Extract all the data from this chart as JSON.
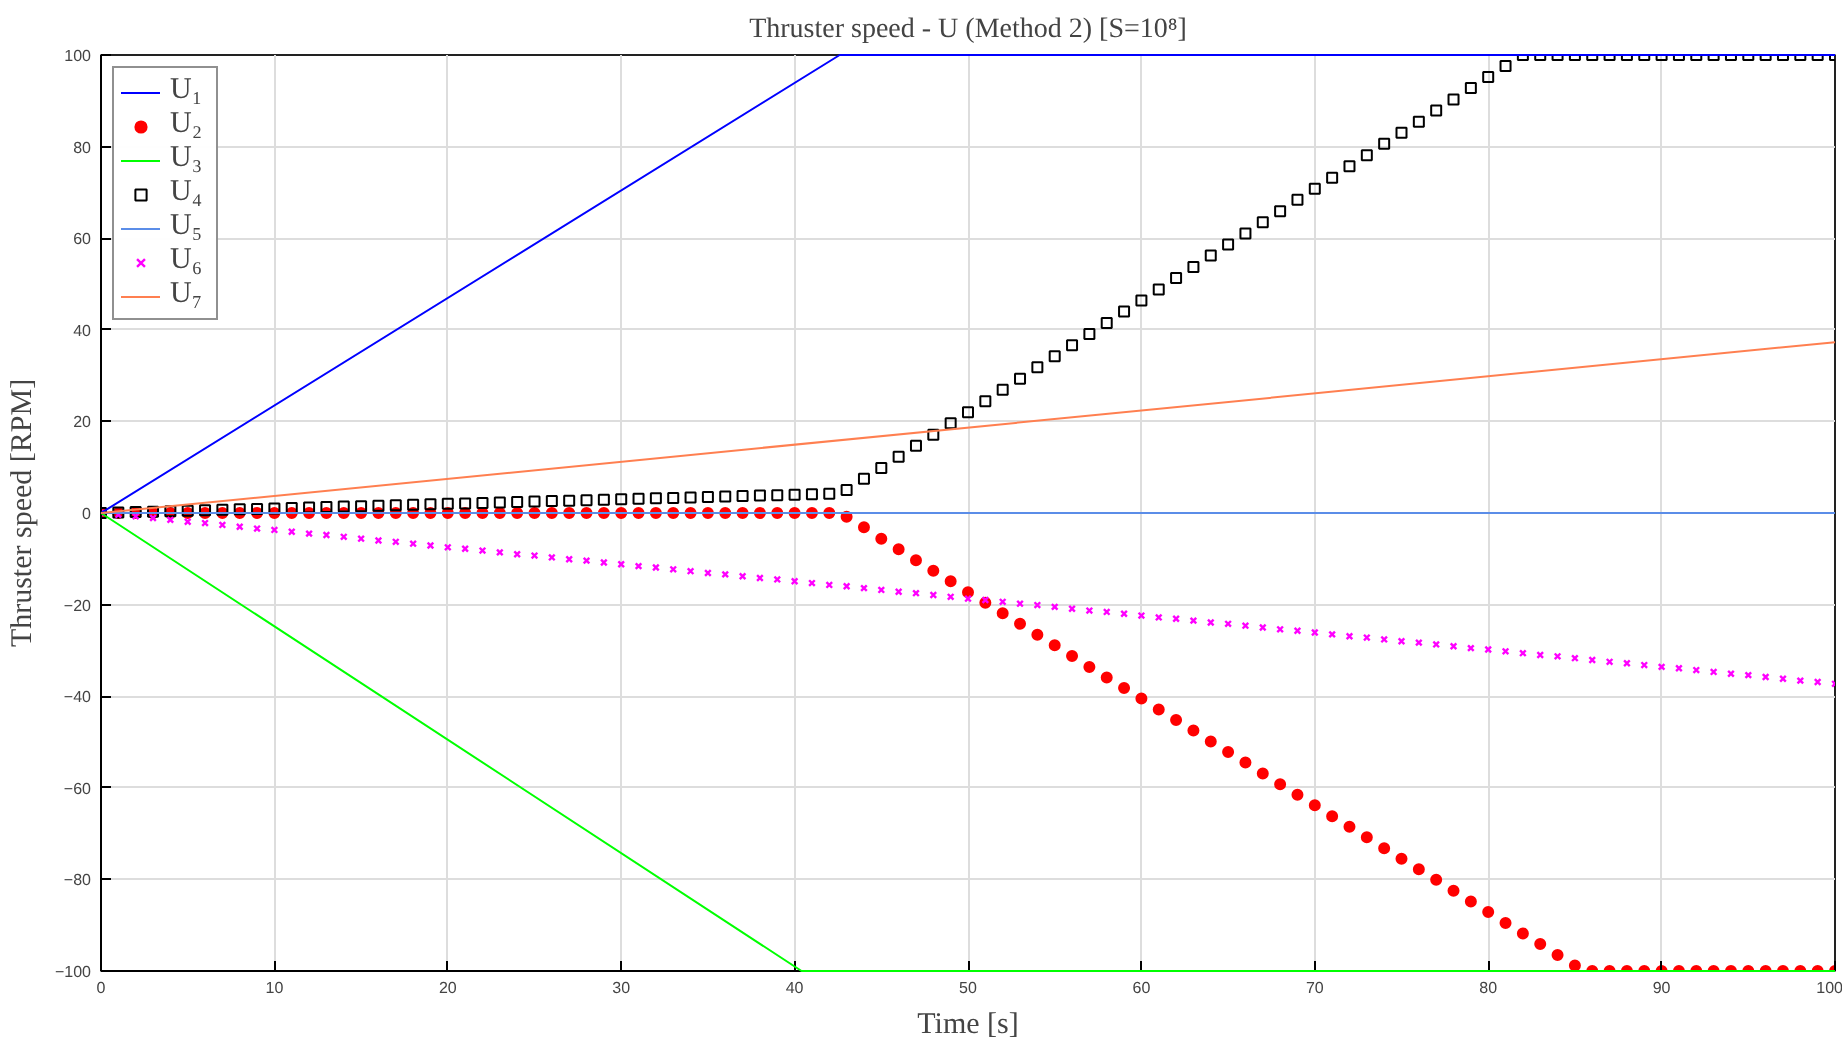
{
  "chart_data": {
    "type": "line",
    "title": "Thruster speed - U (Method 2) [S=10⁸]",
    "xlabel": "Time [s]",
    "ylabel": "Thruster speed [RPM]",
    "xlim": [
      0,
      100
    ],
    "ylim": [
      -100,
      100
    ],
    "xticks": [
      0,
      10,
      20,
      30,
      40,
      50,
      60,
      70,
      80,
      90,
      100
    ],
    "yticks": [
      -100,
      -80,
      -60,
      -40,
      -20,
      0,
      20,
      40,
      60,
      80,
      100
    ],
    "grid": true,
    "legend": "top left",
    "series": [
      {
        "name": "U₁",
        "color": "#0000ff",
        "marker": "none",
        "x": [
          0,
          42.6,
          100
        ],
        "values": [
          0,
          100,
          100
        ]
      },
      {
        "name": "U₂",
        "type": "scatter",
        "color": "#ff0000",
        "marker": "circle",
        "x": [
          0,
          1,
          2,
          3,
          4,
          5,
          6,
          7,
          8,
          9,
          10,
          11,
          12,
          13,
          14,
          15,
          16,
          17,
          18,
          19,
          20,
          21,
          22,
          23,
          24,
          25,
          26,
          27,
          28,
          29,
          30,
          31,
          32,
          33,
          34,
          35,
          36,
          37,
          38,
          39,
          40,
          41,
          42,
          43,
          44,
          45,
          46,
          47,
          48,
          49,
          50,
          51,
          52,
          53,
          54,
          55,
          56,
          57,
          58,
          59,
          60,
          61,
          62,
          63,
          64,
          65,
          66,
          67,
          68,
          69,
          70,
          71,
          72,
          73,
          74,
          75,
          76,
          77,
          78,
          79,
          80,
          81,
          82,
          83,
          84,
          85,
          86,
          87,
          88,
          89,
          90,
          91,
          92,
          93,
          94,
          95,
          96,
          97,
          98,
          99,
          100
        ],
        "values": [
          0,
          0,
          0,
          0,
          0,
          0,
          0,
          0,
          0,
          0,
          0,
          0,
          0,
          0,
          0,
          0,
          0,
          0,
          0,
          0,
          0,
          0,
          0,
          0,
          0,
          0,
          0,
          0,
          0,
          0,
          0,
          0,
          0,
          0,
          0,
          0,
          0,
          0,
          0,
          0,
          0,
          0,
          0,
          -0.8,
          -3.1,
          -5.6,
          -7.9,
          -10.3,
          -12.6,
          -14.9,
          -17.3,
          -19.6,
          -21.9,
          -24.2,
          -26.6,
          -28.9,
          -31.2,
          -33.6,
          -35.9,
          -38.2,
          -40.5,
          -42.9,
          -45.2,
          -47.5,
          -49.9,
          -52.2,
          -54.5,
          -56.9,
          -59.2,
          -61.5,
          -63.8,
          -66.2,
          -68.5,
          -70.8,
          -73.2,
          -75.5,
          -77.8,
          -80.1,
          -82.5,
          -84.8,
          -87.1,
          -89.5,
          -91.8,
          -94.1,
          -96.5,
          -98.8,
          -100,
          -100,
          -100,
          -100,
          -100,
          -100,
          -100,
          -100,
          -100,
          -100,
          -100,
          -100,
          -100,
          -100,
          -100
        ]
      },
      {
        "name": "U₃",
        "color": "#00ff00",
        "marker": "none",
        "x": [
          0,
          40.4,
          100
        ],
        "values": [
          0,
          -100,
          -100
        ]
      },
      {
        "name": "U₄",
        "type": "scatter",
        "color": "#000000",
        "marker": "square",
        "x": [
          0,
          1,
          2,
          3,
          4,
          5,
          6,
          7,
          8,
          9,
          10,
          11,
          12,
          13,
          14,
          15,
          16,
          17,
          18,
          19,
          20,
          21,
          22,
          23,
          24,
          25,
          26,
          27,
          28,
          29,
          30,
          31,
          32,
          33,
          34,
          35,
          36,
          37,
          38,
          39,
          40,
          41,
          42,
          43,
          44,
          45,
          46,
          47,
          48,
          49,
          50,
          51,
          52,
          53,
          54,
          55,
          56,
          57,
          58,
          59,
          60,
          61,
          62,
          63,
          64,
          65,
          66,
          67,
          68,
          69,
          70,
          71,
          72,
          73,
          74,
          75,
          76,
          77,
          78,
          79,
          80,
          81,
          82,
          83,
          84,
          85,
          86,
          87,
          88,
          89,
          90,
          91,
          92,
          93,
          94,
          95,
          96,
          97,
          98,
          99,
          100
        ],
        "values": [
          0,
          0.1,
          0.2,
          0.3,
          0.4,
          0.5,
          0.6,
          0.7,
          0.8,
          0.9,
          1.0,
          1.1,
          1.2,
          1.3,
          1.4,
          1.5,
          1.6,
          1.7,
          1.8,
          1.9,
          2.0,
          2.1,
          2.2,
          2.3,
          2.4,
          2.5,
          2.6,
          2.7,
          2.8,
          2.9,
          3.0,
          3.1,
          3.2,
          3.3,
          3.4,
          3.5,
          3.6,
          3.7,
          3.8,
          3.9,
          4.0,
          4.1,
          4.2,
          5.0,
          7.5,
          9.8,
          12.3,
          14.7,
          17.1,
          19.6,
          22.0,
          24.4,
          26.9,
          29.3,
          31.8,
          34.2,
          36.6,
          39.1,
          41.5,
          44.0,
          46.4,
          48.8,
          51.3,
          53.7,
          56.2,
          58.6,
          61.0,
          63.5,
          65.9,
          68.4,
          70.8,
          73.2,
          75.7,
          78.1,
          80.6,
          83.0,
          85.4,
          87.9,
          90.3,
          92.8,
          95.2,
          97.6,
          100,
          100,
          100,
          100,
          100,
          100,
          100,
          100,
          100,
          100,
          100,
          100,
          100,
          100,
          100,
          100,
          100,
          100,
          100
        ]
      },
      {
        "name": "U₅",
        "color": "#5b8de8",
        "marker": "none",
        "x": [
          0,
          100
        ],
        "values": [
          0,
          0
        ]
      },
      {
        "name": "U₆",
        "type": "scatter",
        "color": "#ff00ff",
        "marker": "cross",
        "x": [
          0,
          1,
          2,
          3,
          4,
          5,
          6,
          7,
          8,
          9,
          10,
          11,
          12,
          13,
          14,
          15,
          16,
          17,
          18,
          19,
          20,
          21,
          22,
          23,
          24,
          25,
          26,
          27,
          28,
          29,
          30,
          31,
          32,
          33,
          34,
          35,
          36,
          37,
          38,
          39,
          40,
          41,
          42,
          43,
          44,
          45,
          46,
          47,
          48,
          49,
          50,
          51,
          52,
          53,
          54,
          55,
          56,
          57,
          58,
          59,
          60,
          61,
          62,
          63,
          64,
          65,
          66,
          67,
          68,
          69,
          70,
          71,
          72,
          73,
          74,
          75,
          76,
          77,
          78,
          79,
          80,
          81,
          82,
          83,
          84,
          85,
          86,
          87,
          88,
          89,
          90,
          91,
          92,
          93,
          94,
          95,
          96,
          97,
          98,
          99,
          100
        ],
        "values": [
          0,
          -0.4,
          -0.7,
          -1.1,
          -1.5,
          -1.9,
          -2.2,
          -2.6,
          -3.0,
          -3.4,
          -3.7,
          -4.1,
          -4.5,
          -4.8,
          -5.2,
          -5.6,
          -6.0,
          -6.3,
          -6.7,
          -7.1,
          -7.5,
          -7.8,
          -8.2,
          -8.6,
          -9.0,
          -9.3,
          -9.7,
          -10.1,
          -10.4,
          -10.8,
          -11.2,
          -11.6,
          -11.9,
          -12.3,
          -12.7,
          -13.1,
          -13.4,
          -13.8,
          -14.2,
          -14.5,
          -14.9,
          -15.3,
          -15.7,
          -16.0,
          -16.4,
          -16.8,
          -17.2,
          -17.5,
          -17.9,
          -18.3,
          -18.7,
          -19.0,
          -19.4,
          -19.8,
          -20.1,
          -20.5,
          -20.9,
          -21.3,
          -21.6,
          -22.0,
          -22.4,
          -22.8,
          -23.1,
          -23.5,
          -23.9,
          -24.2,
          -24.6,
          -25.0,
          -25.4,
          -25.7,
          -26.1,
          -26.5,
          -26.9,
          -27.2,
          -27.6,
          -28.0,
          -28.3,
          -28.7,
          -29.1,
          -29.5,
          -29.8,
          -30.2,
          -30.6,
          -31.0,
          -31.3,
          -31.7,
          -32.1,
          -32.5,
          -32.8,
          -33.2,
          -33.6,
          -33.9,
          -34.3,
          -34.7,
          -35.1,
          -35.4,
          -35.8,
          -36.2,
          -36.6,
          -36.9,
          -37.3
        ]
      },
      {
        "name": "U₇",
        "color": "#ff7f50",
        "marker": "none",
        "x": [
          0,
          100
        ],
        "values": [
          0,
          37.3
        ]
      }
    ]
  }
}
